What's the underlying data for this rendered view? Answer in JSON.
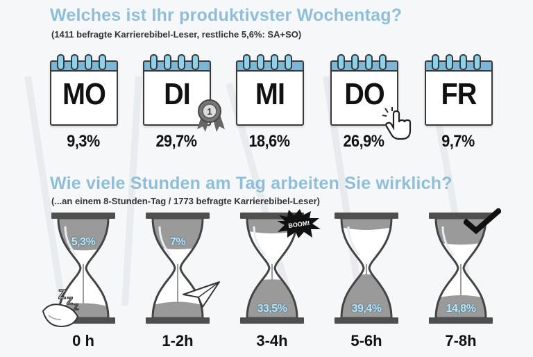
{
  "section1": {
    "title": "Welches ist Ihr produktivster Wochentag?",
    "subtitle": "(1411 befragte Karrierebibel-Leser, restliche 5,6%: SA+SO)"
  },
  "section2": {
    "title": "Wie viele Stunden am Tag arbeiten Sie wirklich?",
    "subtitle": "(...an einem 8-Stunden-Tag / 1773 befragte Karrierebibel-Leser)"
  },
  "icons": {
    "badge": "rosette-badge-icon",
    "badge_text": "1",
    "pointer": "hand-pointer-icon",
    "sleep": "pillow-zzz-icon",
    "plane": "paper-plane-icon",
    "boom": "boom-burst-icon",
    "boom_text": "BOOM!",
    "check": "checkmark-icon",
    "accent": "#7cb8d6",
    "sand": "#9a9a9a"
  },
  "chart_data": [
    {
      "type": "bar",
      "title": "Welches ist Ihr produktivster Wochentag?",
      "categories": [
        "MO",
        "DI",
        "MI",
        "DO",
        "FR"
      ],
      "values": [
        9.3,
        29.7,
        18.6,
        26.9,
        9.7
      ],
      "value_labels": [
        "9,3%",
        "29,7%",
        "18,6%",
        "26,9%",
        "9,7%"
      ]
    },
    {
      "type": "bar",
      "title": "Wie viele Stunden am Tag arbeiten Sie wirklich?",
      "categories": [
        "0 h",
        "1-2h",
        "3-4h",
        "5-6h",
        "7-8h"
      ],
      "values": [
        5.3,
        7,
        33.5,
        39.4,
        14.8
      ],
      "value_labels": [
        "5,3%",
        "7%",
        "33,5%",
        "39,4%",
        "14,8%"
      ]
    }
  ]
}
